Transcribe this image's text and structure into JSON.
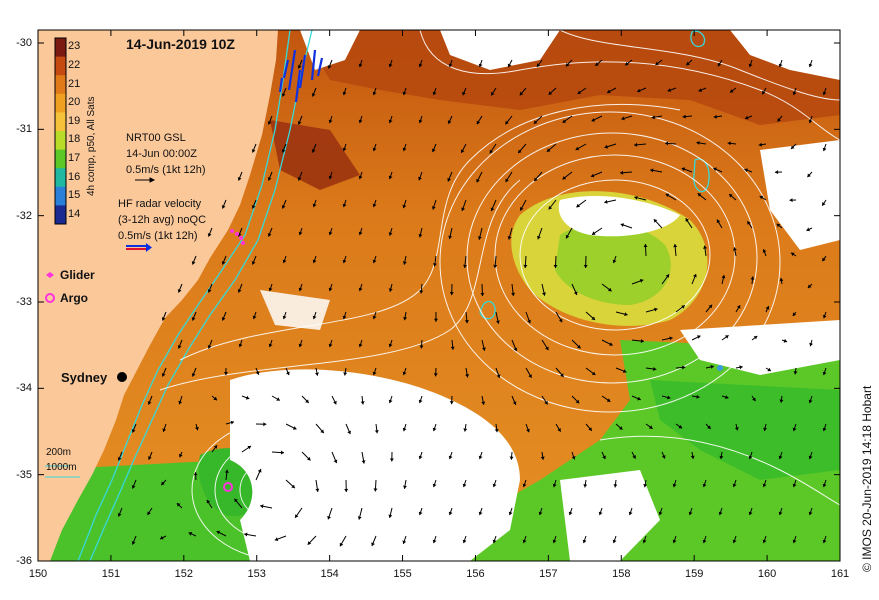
{
  "map": {
    "title": "14-Jun-2019 10Z",
    "lon_ticks": [
      "150",
      "151",
      "152",
      "153",
      "154",
      "155",
      "156",
      "157",
      "158",
      "159",
      "160",
      "161"
    ],
    "lat_ticks": [
      "-30",
      "-31",
      "-32",
      "-33",
      "-34",
      "-35",
      "-36"
    ],
    "colorbar": {
      "labels": [
        "23",
        "22",
        "21",
        "20",
        "19",
        "18",
        "17",
        "16",
        "15",
        "14"
      ],
      "colors": [
        "#7a1a10",
        "#c44a12",
        "#e07a18",
        "#f0a020",
        "#f5c23a",
        "#b8dc28",
        "#5cc828",
        "#20b8a0",
        "#2a80d8",
        "#1a2a90"
      ],
      "title": "4h comp, p50, All Sats"
    },
    "gsl_note": {
      "line1": "NRT00 GSL",
      "line2": "14-Jun 00:00Z",
      "line3": "0.5m/s (1kt 12h)"
    },
    "radar_note": {
      "line1": "HF radar velocity",
      "line2": "(3-12h avg) noQC",
      "line3": "0.5m/s (1kt 12h)"
    },
    "legend": {
      "glider": "Glider",
      "argo": "Argo"
    },
    "city": "Sydney",
    "contours": {
      "c200": "200m",
      "c1000": "1000m"
    },
    "credit": "© IMOS 20-Jun-2019 14:18 Hobart",
    "colors": {
      "land": "#fbc89a",
      "no_data": "#ffffff",
      "current_contour": "#ffffff",
      "bathymetry": "#38d8d8",
      "glider": "#ff33dd",
      "argo": "#ff33dd",
      "radar_arrows": "#1030e0"
    }
  }
}
